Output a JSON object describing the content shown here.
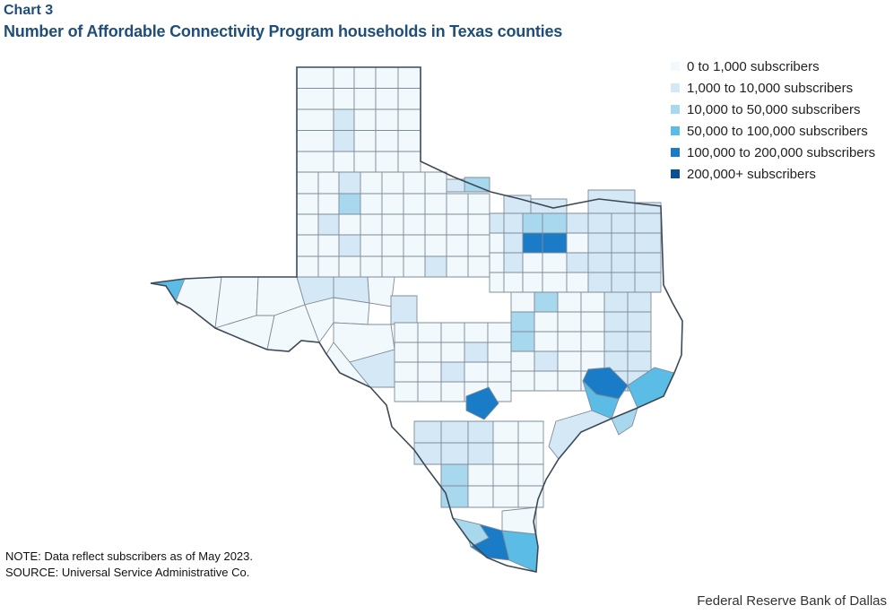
{
  "header": {
    "chart_label": "Chart 3",
    "title": "Number of Affordable Connectivity Program households in Texas counties"
  },
  "legend": [
    {
      "label": "0 to 1,000 subscribers",
      "color": "#f2f9fd"
    },
    {
      "label": "1,000 to 10,000 subscribers",
      "color": "#d4e8f6"
    },
    {
      "label": "10,000 to 50,000 subscribers",
      "color": "#a8d8ee"
    },
    {
      "label": "50,000 to 100,000 subscribers",
      "color": "#5bbce6"
    },
    {
      "label": "100,000 to 200,000 subscribers",
      "color": "#1a7cc6"
    },
    {
      "label": "200,000+ subscribers",
      "color": "#0a4f96"
    }
  ],
  "colors": {
    "county_border": "#7f8c99",
    "state_outline": "#3d4a56"
  },
  "highlighted_counties": [
    {
      "area": "Dallas–Fort Worth",
      "class": "100,000 to 200,000 subscribers"
    },
    {
      "area": "Houston",
      "class": "100,000 to 200,000 subscribers"
    },
    {
      "area": "San Antonio",
      "class": "100,000 to 200,000 subscribers"
    },
    {
      "area": "Rio Grande Valley",
      "class": "100,000 to 200,000 subscribers"
    },
    {
      "area": "El Paso",
      "class": "50,000 to 100,000 subscribers"
    }
  ],
  "footer": {
    "note": "NOTE: Data reflect subscribers as of May 2023.",
    "source": "SOURCE: Universal Service Administrative Co.",
    "credit": "Federal Reserve Bank of Dallas"
  }
}
